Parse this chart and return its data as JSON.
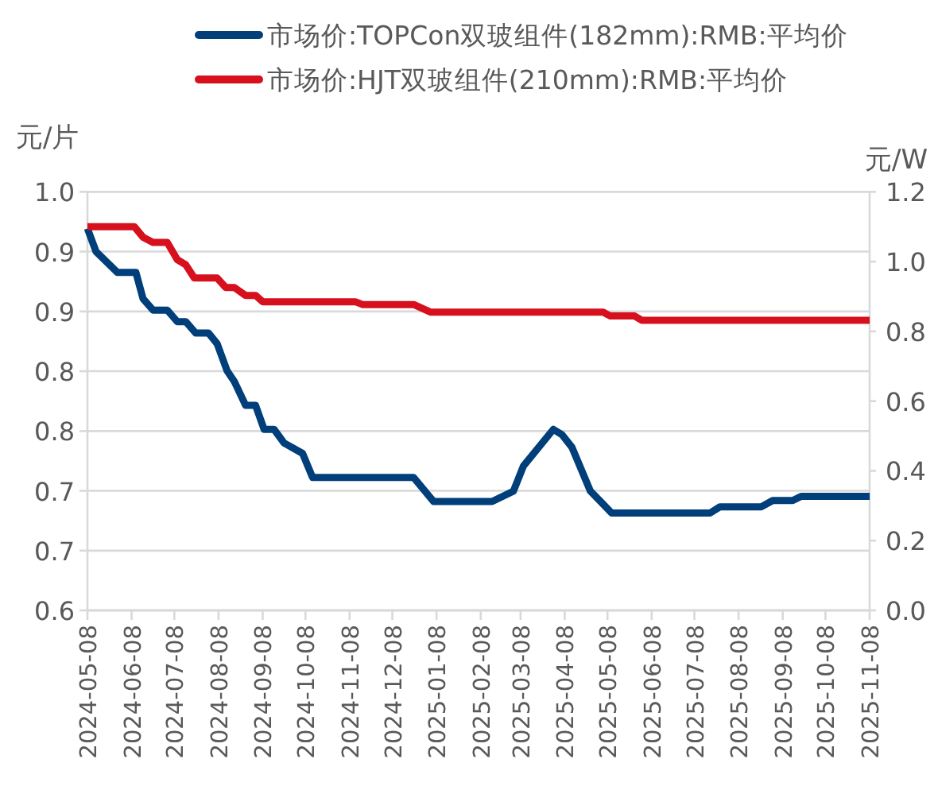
{
  "chart_data": {
    "type": "line",
    "ylabel": "元/片",
    "y2label": "元/W",
    "xlim": [
      "2024-05-08",
      "2025-11-08"
    ],
    "xticks": [
      "2024-05-08",
      "2024-06-08",
      "2024-07-08",
      "2024-08-08",
      "2024-09-08",
      "2024-10-08",
      "2024-11-08",
      "2024-12-08",
      "2025-01-08",
      "2025-02-08",
      "2025-03-08",
      "2025-04-08",
      "2025-05-08",
      "2025-06-08",
      "2025-07-08",
      "2025-08-08",
      "2025-09-08",
      "2025-10-08",
      "2025-11-08"
    ],
    "ylim": [
      0.6,
      1.0
    ],
    "yticks": [
      {
        "value": 0.6,
        "label": "0.6"
      },
      {
        "value": 0.6571,
        "label": "0.7"
      },
      {
        "value": 0.7143,
        "label": "0.7"
      },
      {
        "value": 0.7714,
        "label": "0.8"
      },
      {
        "value": 0.8286,
        "label": "0.8"
      },
      {
        "value": 0.8857,
        "label": "0.9"
      },
      {
        "value": 0.9429,
        "label": "0.9"
      },
      {
        "value": 1.0,
        "label": "1.0"
      }
    ],
    "y2lim": [
      0.0,
      1.2
    ],
    "y2ticks": [
      {
        "value": 0,
        "label": "0.0"
      },
      {
        "value": 0.2,
        "label": "0.2"
      },
      {
        "value": 0.4,
        "label": "0.4"
      },
      {
        "value": 0.6,
        "label": "0.6"
      },
      {
        "value": 0.8,
        "label": "0.8"
      },
      {
        "value": 1.0,
        "label": "1.0"
      },
      {
        "value": 1.2,
        "label": "1.2"
      }
    ],
    "grid": "y",
    "legend": "top",
    "marker": "none",
    "line_style": "solid",
    "series": [
      {
        "name": "市场价:TOPCon双玻组件(182mm):RMB:平均价",
        "color": "#003f7a",
        "axis": "y",
        "x": [
          "2024-05-08",
          "2024-05-14",
          "2024-05-29",
          "2024-06-11",
          "2024-06-16",
          "2024-06-23",
          "2024-07-03",
          "2024-07-10",
          "2024-07-16",
          "2024-07-23",
          "2024-08-01",
          "2024-08-07",
          "2024-08-14",
          "2024-08-19",
          "2024-08-27",
          "2024-09-03",
          "2024-09-09",
          "2024-09-16",
          "2024-09-23",
          "2024-10-06",
          "2024-10-13",
          "2024-12-23",
          "2025-01-06",
          "2025-02-16",
          "2025-03-03",
          "2025-03-10",
          "2025-03-31",
          "2025-04-06",
          "2025-04-13",
          "2025-04-26",
          "2025-05-11",
          "2025-07-19",
          "2025-07-26",
          "2025-08-24",
          "2025-09-01",
          "2025-09-15",
          "2025-09-21",
          "2025-11-08"
        ],
        "values": [
          0.965,
          0.943,
          0.923,
          0.923,
          0.898,
          0.887,
          0.887,
          0.876,
          0.876,
          0.865,
          0.865,
          0.855,
          0.829,
          0.819,
          0.796,
          0.796,
          0.773,
          0.773,
          0.76,
          0.75,
          0.727,
          0.727,
          0.704,
          0.704,
          0.714,
          0.738,
          0.773,
          0.768,
          0.756,
          0.714,
          0.693,
          0.693,
          0.699,
          0.699,
          0.705,
          0.705,
          0.709,
          0.709
        ]
      },
      {
        "name": "市场价:HJT双玻组件(210mm):RMB:平均价",
        "color": "#d7101e",
        "axis": "y2",
        "x": [
          "2024-05-08",
          "2024-06-10",
          "2024-06-16",
          "2024-06-23",
          "2024-07-03",
          "2024-07-10",
          "2024-07-16",
          "2024-07-22",
          "2024-08-07",
          "2024-08-13",
          "2024-08-19",
          "2024-08-27",
          "2024-09-03",
          "2024-09-08",
          "2024-11-12",
          "2024-11-17",
          "2024-12-23",
          "2025-01-04",
          "2025-05-05",
          "2025-05-10",
          "2025-05-27",
          "2025-06-01",
          "2025-11-08"
        ],
        "values": [
          1.1,
          1.1,
          1.07,
          1.055,
          1.055,
          1.006,
          0.991,
          0.953,
          0.953,
          0.926,
          0.926,
          0.903,
          0.903,
          0.885,
          0.885,
          0.877,
          0.877,
          0.855,
          0.855,
          0.844,
          0.844,
          0.832,
          0.832
        ]
      }
    ]
  }
}
